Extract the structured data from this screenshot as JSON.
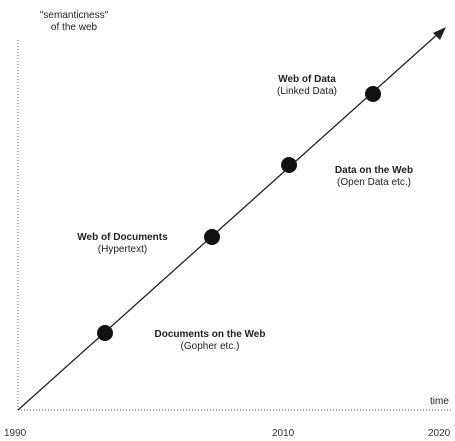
{
  "y_axis_label": {
    "line1": "\"semanticness\"",
    "line2": "of the web"
  },
  "x_axis_label": "time",
  "x_ticks": [
    "1990",
    "2010",
    "2020"
  ],
  "milestones": [
    {
      "title": "Documents on the Web",
      "subtitle": "(Gopher etc.)"
    },
    {
      "title": "Web of Documents",
      "subtitle": "(Hypertext)"
    },
    {
      "title": "Data on the Web",
      "subtitle": "(Open Data etc.)"
    },
    {
      "title": "Web of Data",
      "subtitle": "(Linked Data)"
    }
  ],
  "colors": {
    "line": "#222222",
    "dot": "#111111",
    "axis_dots": "#555555",
    "text": "#222222"
  }
}
